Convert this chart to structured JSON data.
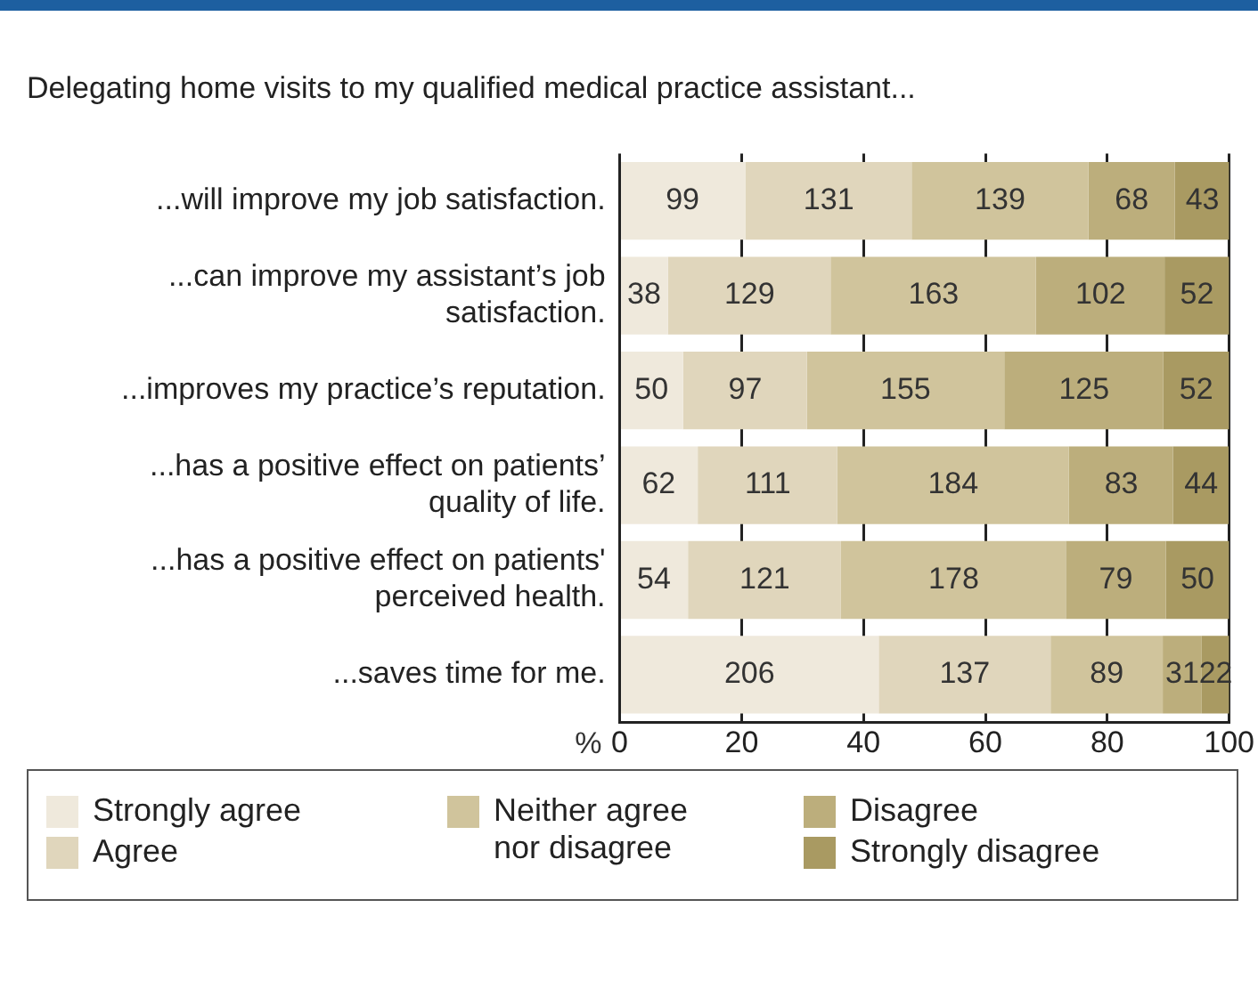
{
  "chart_data": {
    "type": "bar",
    "orientation": "horizontal",
    "stacked": true,
    "title": "Delegating home visits to my qualified medical practice assistant...",
    "xlabel": "%",
    "categories": [
      "...will improve my job satisfaction.",
      "...can improve my assistant’s job satisfaction.",
      "...improves my practice’s reputation.",
      "...has a positive effect on patients’ quality of life.",
      "...has a positive effect on patients' perceived health.",
      "...saves time for me."
    ],
    "series": [
      {
        "name": "Strongly agree",
        "color": "#efe9dc",
        "values": [
          20.6,
          7.9,
          10.4,
          12.8,
          11.2,
          42.5
        ]
      },
      {
        "name": "Agree",
        "color": "#e0d6bc",
        "values": [
          27.3,
          26.7,
          20.3,
          22.9,
          25.1,
          28.2
        ]
      },
      {
        "name": "Neither agree nor disagree",
        "color": "#d0c49c",
        "values": [
          29.0,
          33.7,
          32.4,
          38.0,
          36.9,
          18.4
        ]
      },
      {
        "name": "Disagree",
        "color": "#bcae7c",
        "values": [
          14.2,
          21.1,
          26.1,
          17.1,
          16.4,
          6.4
        ]
      },
      {
        "name": "Strongly disagree",
        "color": "#a99a62",
        "values": [
          8.9,
          10.6,
          10.8,
          9.1,
          10.4,
          4.5
        ]
      }
    ],
    "annotations": [
      {
        "text": "99",
        "x": 10.3,
        "y": "...will improve my job satisfaction."
      },
      {
        "text": "131",
        "x": 34.3,
        "y": "...will improve my job satisfaction."
      },
      {
        "text": "139",
        "x": 62.4,
        "y": "...will improve my job satisfaction."
      },
      {
        "text": "68",
        "x": 84.0,
        "y": "...will improve my job satisfaction."
      },
      {
        "text": "43",
        "x": 95.6,
        "y": "...will improve my job satisfaction."
      },
      {
        "text": "38",
        "x": 4.0,
        "y": "...can improve my assistant’s job satisfaction."
      },
      {
        "text": "129",
        "x": 21.3,
        "y": "...can improve my assistant’s job satisfaction."
      },
      {
        "text": "163",
        "x": 51.5,
        "y": "...can improve my assistant’s job satisfaction."
      },
      {
        "text": "102",
        "x": 78.9,
        "y": "...can improve my assistant’s job satisfaction."
      },
      {
        "text": "52",
        "x": 94.7,
        "y": "...can improve my assistant’s job satisfaction."
      },
      {
        "text": "50",
        "x": 5.2,
        "y": "...improves my practice’s reputation."
      },
      {
        "text": "97",
        "x": 20.6,
        "y": "...improves my practice’s reputation."
      },
      {
        "text": "155",
        "x": 46.9,
        "y": "...improves my practice’s reputation."
      },
      {
        "text": "125",
        "x": 76.2,
        "y": "...improves my practice’s reputation."
      },
      {
        "text": "52",
        "x": 94.6,
        "y": "...improves my practice’s reputation."
      },
      {
        "text": "62",
        "x": 6.4,
        "y": "...has a positive effect on patients’ quality of life."
      },
      {
        "text": "111",
        "x": 24.3,
        "y": "...has a positive effect on patients’ quality of life."
      },
      {
        "text": "184",
        "x": 54.7,
        "y": "...has a positive effect on patients’ quality of life."
      },
      {
        "text": "83",
        "x": 82.3,
        "y": "...has a positive effect on patients’ quality of life."
      },
      {
        "text": "44",
        "x": 95.4,
        "y": "...has a positive effect on patients’ quality of life."
      },
      {
        "text": "54",
        "x": 5.6,
        "y": "...has a positive effect on patients' perceived health."
      },
      {
        "text": "121",
        "x": 23.8,
        "y": "...has a positive effect on patients' perceived health."
      },
      {
        "text": "178",
        "x": 54.8,
        "y": "...has a positive effect on patients' perceived health."
      },
      {
        "text": "79",
        "x": 81.4,
        "y": "...has a positive effect on patients' perceived health."
      },
      {
        "text": "50",
        "x": 94.8,
        "y": "...has a positive effect on patients' perceived health."
      },
      {
        "text": "206",
        "x": 21.3,
        "y": "...saves time for me."
      },
      {
        "text": "137",
        "x": 56.6,
        "y": "...saves time for me."
      },
      {
        "text": "89",
        "x": 79.9,
        "y": "...saves time for me."
      },
      {
        "text": "31",
        "x": 92.3,
        "y": "...saves time for me."
      },
      {
        "text": "22",
        "x": 97.8,
        "y": "...saves time for me."
      }
    ],
    "xlim": [
      0,
      100
    ],
    "xticks": [
      0,
      20,
      40,
      60,
      80,
      100
    ],
    "grid": "x",
    "legend": "bottom"
  }
}
